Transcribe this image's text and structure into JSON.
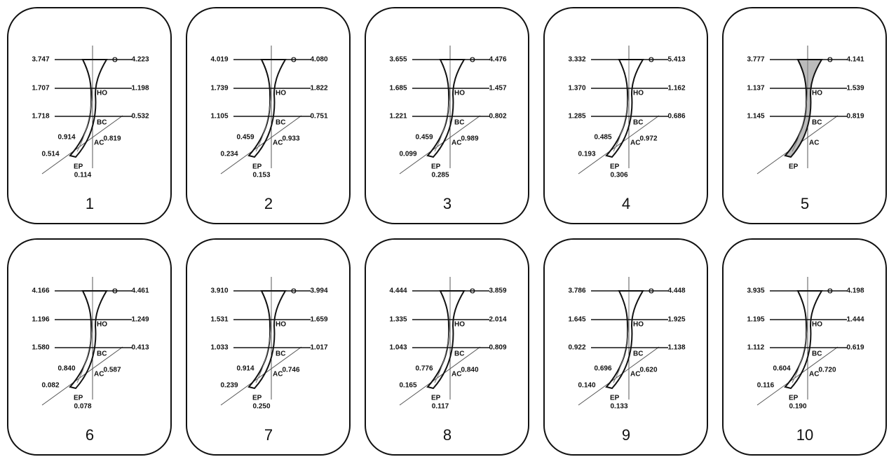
{
  "panels": [
    {
      "number": "1",
      "levels": [
        {
          "name": "O",
          "left": "3.747",
          "right": "4.223"
        },
        {
          "name": "HO",
          "left": "1.707",
          "right": "1.198"
        },
        {
          "name": "BC",
          "left": "1.718",
          "right": "0.532"
        },
        {
          "name": "AC",
          "left": "0.914",
          "right": "0.819"
        },
        {
          "name": "EP",
          "left": "0.514",
          "right": "0.114"
        }
      ]
    },
    {
      "number": "2",
      "levels": [
        {
          "name": "O",
          "left": "4.019",
          "right": "4.080"
        },
        {
          "name": "HO",
          "left": "1.739",
          "right": "1.822"
        },
        {
          "name": "BC",
          "left": "1.105",
          "right": "0.751"
        },
        {
          "name": "AC",
          "left": "0.459",
          "right": "0.933"
        },
        {
          "name": "EP",
          "left": "0.234",
          "right": "0.153"
        }
      ]
    },
    {
      "number": "3",
      "levels": [
        {
          "name": "O",
          "left": "3.655",
          "right": "4.476"
        },
        {
          "name": "HO",
          "left": "1.685",
          "right": "1.457"
        },
        {
          "name": "BC",
          "left": "1.221",
          "right": "0.802"
        },
        {
          "name": "AC",
          "left": "0.459",
          "right": "0.989"
        },
        {
          "name": "EP",
          "left": "0.099",
          "right": "0.285"
        }
      ]
    },
    {
      "number": "4",
      "levels": [
        {
          "name": "O",
          "left": "3.332",
          "right": "5.413"
        },
        {
          "name": "HO",
          "left": "1.370",
          "right": "1.162"
        },
        {
          "name": "BC",
          "left": "1.285",
          "right": "0.686"
        },
        {
          "name": "AC",
          "left": "0.485",
          "right": "0.972"
        },
        {
          "name": "EP",
          "left": "0.193",
          "right": "0.306"
        }
      ]
    },
    {
      "number": "5",
      "levels": [
        {
          "name": "O",
          "left": "3.777",
          "right": "4.141"
        },
        {
          "name": "HO",
          "left": "1.137",
          "right": "1.539"
        },
        {
          "name": "BC",
          "left": "1.145",
          "right": "0.819"
        },
        {
          "name": "AC"
        },
        {
          "name": "EP"
        }
      ]
    },
    {
      "number": "6",
      "levels": [
        {
          "name": "O",
          "left": "4.166",
          "right": "4.461"
        },
        {
          "name": "HO",
          "left": "1.196",
          "right": "1.249"
        },
        {
          "name": "BC",
          "left": "1.580",
          "right": "0.413"
        },
        {
          "name": "AC",
          "left": "0.840",
          "right": "0.587"
        },
        {
          "name": "EP",
          "left": "0.082",
          "right": "0.078"
        }
      ]
    },
    {
      "number": "7",
      "levels": [
        {
          "name": "O",
          "left": "3.910",
          "right": "3.994"
        },
        {
          "name": "HO",
          "left": "1.531",
          "right": "1.659"
        },
        {
          "name": "BC",
          "left": "1.033",
          "right": "1.017"
        },
        {
          "name": "AC",
          "left": "0.914",
          "right": "0.746"
        },
        {
          "name": "EP",
          "left": "0.239",
          "right": "0.250"
        }
      ]
    },
    {
      "number": "8",
      "levels": [
        {
          "name": "O",
          "left": "4.444",
          "right": "3.859"
        },
        {
          "name": "HO",
          "left": "1.335",
          "right": "2.014"
        },
        {
          "name": "BC",
          "left": "1.043",
          "right": "0.809"
        },
        {
          "name": "AC",
          "left": "0.776",
          "right": "0.840"
        },
        {
          "name": "EP",
          "left": "0.165",
          "right": "0.117"
        }
      ]
    },
    {
      "number": "9",
      "levels": [
        {
          "name": "O",
          "left": "3.786",
          "right": "4.448"
        },
        {
          "name": "HO",
          "left": "1.645",
          "right": "1.925"
        },
        {
          "name": "BC",
          "left": "0.922",
          "right": "1.138"
        },
        {
          "name": "AC",
          "left": "0.696",
          "right": "0.620"
        },
        {
          "name": "EP",
          "left": "0.140",
          "right": "0.133"
        }
      ]
    },
    {
      "number": "10",
      "levels": [
        {
          "name": "O",
          "left": "3.935",
          "right": "4.198"
        },
        {
          "name": "HO",
          "left": "1.195",
          "right": "1.444"
        },
        {
          "name": "BC",
          "left": "1.112",
          "right": "0.619"
        },
        {
          "name": "AC",
          "left": "0.604",
          "right": "0.720"
        },
        {
          "name": "EP",
          "left": "0.116",
          "right": "0.190"
        }
      ]
    }
  ]
}
